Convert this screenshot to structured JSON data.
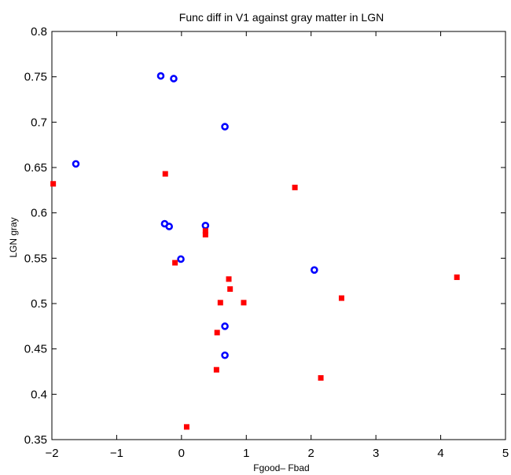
{
  "chart_data": {
    "type": "scatter",
    "title": "Func diff in V1   against gray matter in LGN",
    "xlabel": "Fgood– Fbad",
    "ylabel": "LGN gray",
    "xlim": [
      -2,
      5
    ],
    "ylim": [
      0.35,
      0.8
    ],
    "xticks": [
      -2,
      -1,
      0,
      1,
      2,
      3,
      4,
      5
    ],
    "yticks": [
      0.35,
      0.4,
      0.45,
      0.5,
      0.55,
      0.6,
      0.65,
      0.7,
      0.75,
      0.8
    ],
    "grid": false,
    "series": [
      {
        "marker": "circle",
        "color": "#0000ff",
        "points": [
          {
            "x": -1.63,
            "y": 0.654
          },
          {
            "x": -0.32,
            "y": 0.751
          },
          {
            "x": -0.12,
            "y": 0.748
          },
          {
            "x": 0.67,
            "y": 0.695
          },
          {
            "x": -0.26,
            "y": 0.588
          },
          {
            "x": -0.19,
            "y": 0.585
          },
          {
            "x": 0.37,
            "y": 0.586
          },
          {
            "x": -0.01,
            "y": 0.549
          },
          {
            "x": 2.05,
            "y": 0.537
          },
          {
            "x": 0.67,
            "y": 0.475
          },
          {
            "x": 0.67,
            "y": 0.443
          }
        ]
      },
      {
        "marker": "square",
        "color": "#ff0000",
        "points": [
          {
            "x": -1.98,
            "y": 0.632
          },
          {
            "x": -0.25,
            "y": 0.643
          },
          {
            "x": 1.75,
            "y": 0.628
          },
          {
            "x": 0.37,
            "y": 0.58
          },
          {
            "x": 0.37,
            "y": 0.576
          },
          {
            "x": -0.1,
            "y": 0.545
          },
          {
            "x": 0.73,
            "y": 0.527
          },
          {
            "x": 0.75,
            "y": 0.516
          },
          {
            "x": 0.6,
            "y": 0.501
          },
          {
            "x": 0.96,
            "y": 0.501
          },
          {
            "x": 4.25,
            "y": 0.529
          },
          {
            "x": 2.47,
            "y": 0.506
          },
          {
            "x": 0.55,
            "y": 0.468
          },
          {
            "x": 0.54,
            "y": 0.427
          },
          {
            "x": 2.15,
            "y": 0.418
          },
          {
            "x": 0.08,
            "y": 0.364
          }
        ]
      }
    ]
  }
}
